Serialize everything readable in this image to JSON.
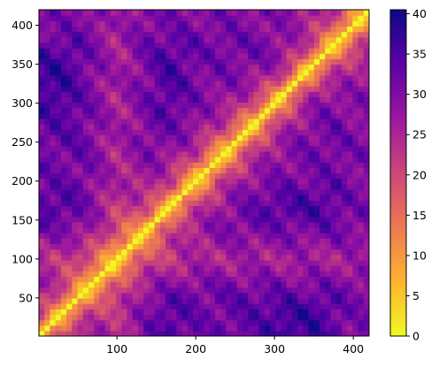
{
  "chart_data": {
    "type": "heatmap",
    "title": "",
    "xlabel": "",
    "ylabel": "",
    "xlim": [
      1,
      420
    ],
    "ylim": [
      1,
      420
    ],
    "x_ticks": [
      100,
      200,
      300,
      400
    ],
    "y_ticks": [
      50,
      100,
      150,
      200,
      250,
      300,
      350,
      400
    ],
    "diagonal_value": 0,
    "row_profile": [
      {
        "index": 30,
        "value": 36
      },
      {
        "index": 100,
        "value": 25
      },
      {
        "index": 165,
        "value": 35
      },
      {
        "index": 210,
        "value": 31
      },
      {
        "index": 280,
        "value": 33
      },
      {
        "index": 330,
        "value": 38
      },
      {
        "index": 400,
        "value": 30
      }
    ],
    "colormap": "plasma_r",
    "colorbar": {
      "min": 0,
      "max": 40.5,
      "ticks": [
        0,
        5,
        10,
        15,
        20,
        25,
        30,
        35,
        40
      ],
      "colors": [
        "#f0f921",
        "#fdb42f",
        "#ed7953",
        "#cc4778",
        "#9c179e",
        "#5c01a6",
        "#0d0887"
      ]
    }
  }
}
